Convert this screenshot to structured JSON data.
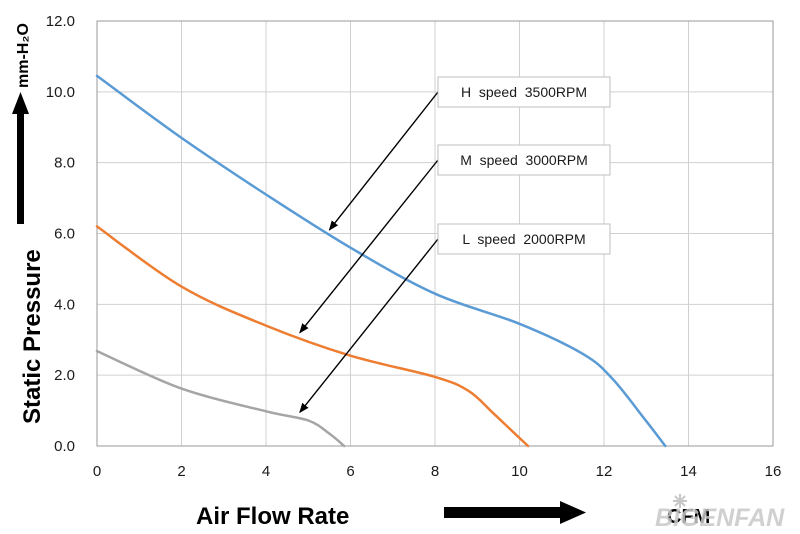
{
  "chart_data": {
    "type": "line",
    "xlabel": "Air  Flow  Rate",
    "xunit": "CFM",
    "ylabel": "Static  Pressure",
    "yunit": "mm-H₂O",
    "xlim": [
      0,
      16
    ],
    "ylim": [
      0,
      12
    ],
    "xticks": [
      "0",
      "2",
      "4",
      "6",
      "8",
      "10",
      "12",
      "14",
      "16"
    ],
    "yticks": [
      "0.0",
      "2.0",
      "4.0",
      "6.0",
      "8.0",
      "10.0",
      "12.0"
    ],
    "grid": true,
    "series": [
      {
        "name": "H  speed  3500RPM",
        "color": "#5b9bd5",
        "x": [
          0,
          2,
          4,
          6,
          8,
          10,
          11.5,
          12.2,
          13,
          13.45
        ],
        "y": [
          10.45,
          8.7,
          7.1,
          5.6,
          4.3,
          3.45,
          2.6,
          1.9,
          0.7,
          0.0
        ]
      },
      {
        "name": "M  speed  3000RPM",
        "color": "#ed7d31",
        "x": [
          0,
          2,
          4,
          6,
          8,
          8.8,
          9.4,
          10.2
        ],
        "y": [
          6.2,
          4.5,
          3.4,
          2.55,
          1.95,
          1.55,
          0.9,
          0.0
        ]
      },
      {
        "name": "L  speed  2000RPM",
        "color": "#a5a5a5",
        "x": [
          0,
          2,
          4,
          5,
          5.5,
          5.85
        ],
        "y": [
          2.68,
          1.62,
          0.98,
          0.72,
          0.35,
          0.0
        ]
      }
    ],
    "annotations": [
      {
        "label": "H  speed  3500RPM",
        "target": [
          5.5,
          6.1
        ]
      },
      {
        "label": "M  speed  3000RPM",
        "target": [
          4.8,
          3.2
        ]
      },
      {
        "label": "L  speed  2000RPM",
        "target": [
          4.8,
          0.95
        ]
      }
    ]
  },
  "branding": {
    "watermark": "BIGENFAN"
  }
}
